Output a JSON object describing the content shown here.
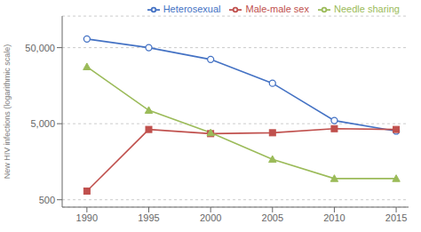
{
  "chart_data": {
    "type": "line",
    "ylabel": "New HIV infections (logarithmic scale)",
    "x": [
      1990,
      1995,
      2000,
      2005,
      2010,
      2015
    ],
    "series": [
      {
        "name": "Heterosexual",
        "color": "#4472C4",
        "marker": "circle",
        "values": [
          65000,
          50000,
          35000,
          17000,
          5500,
          4000
        ]
      },
      {
        "name": "Male-male sex",
        "color": "#C0504D",
        "marker": "square",
        "values": [
          650,
          4200,
          3700,
          3800,
          4300,
          4200
        ]
      },
      {
        "name": "Needle sharing",
        "color": "#9BBB59",
        "marker": "triangle",
        "values": [
          28000,
          7500,
          3800,
          1700,
          950,
          950
        ]
      }
    ],
    "log": "y",
    "xlim": [
      1988,
      2016
    ],
    "xticks": [
      1990,
      1995,
      2000,
      2005,
      2010,
      2015
    ],
    "ylim": [
      400,
      130000
    ],
    "yticks": [
      500,
      {
        "value": 5000,
        "label": "5,000"
      },
      {
        "value": 50000,
        "label": "50,000"
      }
    ],
    "grid": true,
    "legend": "upper right"
  }
}
